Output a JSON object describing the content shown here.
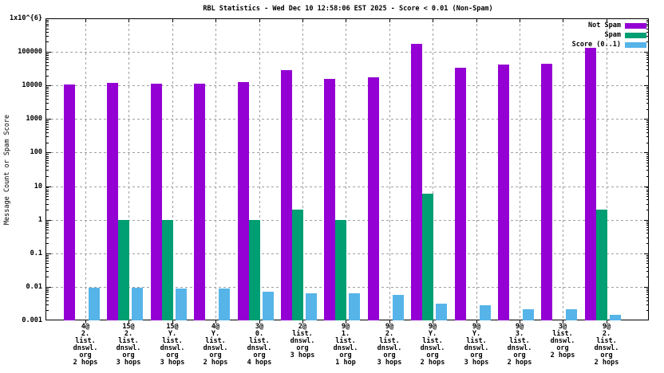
{
  "chart_data": {
    "type": "bar",
    "title": "RBL Statistics - Wed Dec 10 12:58:06 EST 2025 - Score < 0.01 (Non-Spam)",
    "ylabel": "Message Count or Spam Score",
    "xlabel": "",
    "y_scale": "log",
    "ylim": [
      0.001,
      1000000
    ],
    "y_tick_labels": [
      "1x10^{6}",
      "100000",
      "10000",
      "1000",
      "100",
      "10",
      "1",
      "0.1",
      "0.01",
      "0.001"
    ],
    "grid": true,
    "legend_position": "top-right-inside",
    "categories": [
      [
        "4@",
        "2.",
        "list.",
        "dnswl.",
        "org",
        "2 hops"
      ],
      [
        "15@",
        "2.",
        "list.",
        "dnswl.",
        "org",
        "3 hops"
      ],
      [
        "15@",
        "Y.",
        "list.",
        "dnswl.",
        "org",
        "3 hops"
      ],
      [
        "4@",
        "Y.",
        "list.",
        "dnswl.",
        "org",
        "2 hops"
      ],
      [
        "3@",
        "0.",
        "list.",
        "dnswl.",
        "org",
        "4 hops"
      ],
      [
        "2@",
        "list.",
        "dnswl.",
        "org",
        "3 hops"
      ],
      [
        "9@",
        "1.",
        "list.",
        "dnswl.",
        "org",
        "1 hop"
      ],
      [
        "9@",
        "2.",
        "list.",
        "dnswl.",
        "org",
        "3 hops"
      ],
      [
        "9@",
        "Y.",
        "list.",
        "dnswl.",
        "org",
        "2 hops"
      ],
      [
        "9@",
        "Y.",
        "list.",
        "dnswl.",
        "org",
        "3 hops"
      ],
      [
        "9@",
        "3.",
        "list.",
        "dnswl.",
        "org",
        "2 hops"
      ],
      [
        "3@",
        "list.",
        "dnswl.",
        "org",
        "2 hops"
      ],
      [
        "9@",
        "2.",
        "list.",
        "dnswl.",
        "org",
        "2 hops"
      ]
    ],
    "series": [
      {
        "name": "Not Spam",
        "color": "#9400D3",
        "values": [
          10700,
          11800,
          11500,
          11200,
          12800,
          29000,
          15400,
          17200,
          177000,
          33000,
          43000,
          45000,
          132000
        ]
      },
      {
        "name": "Spam",
        "color": "#009E73",
        "values": [
          null,
          1,
          1,
          null,
          1,
          2,
          1,
          null,
          6,
          null,
          null,
          null,
          2
        ]
      },
      {
        "name": "Score (0..1)",
        "color": "#56B4E9",
        "values": [
          0.0094,
          0.0094,
          0.009,
          0.009,
          0.0071,
          0.0065,
          0.0063,
          0.0057,
          0.0032,
          0.0028,
          0.0022,
          0.0022,
          0.0015
        ]
      }
    ]
  },
  "style": {
    "grid_color": "#a0a0a0",
    "axis_color": "#000000",
    "background": "#ffffff"
  }
}
